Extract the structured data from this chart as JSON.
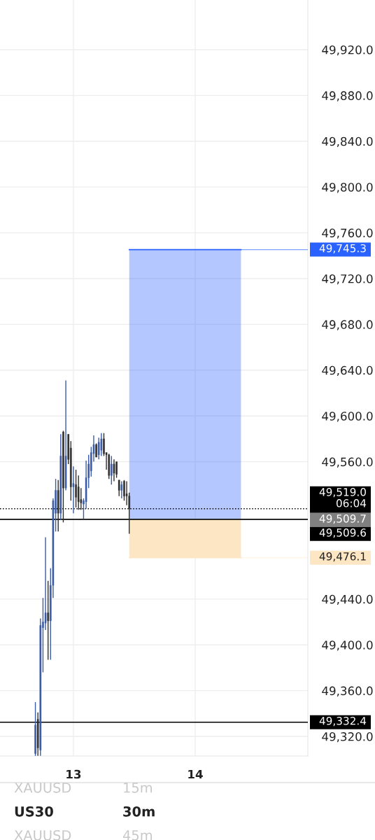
{
  "chart_data": {
    "type": "candlestick",
    "x": [
      12.6875,
      12.7083,
      12.7292,
      12.75,
      12.7708,
      12.7917,
      12.8125,
      12.8333,
      12.8542,
      12.875,
      12.8958,
      12.9167,
      12.9375,
      12.9583,
      12.9792,
      13,
      13.0208,
      13.0417,
      13.0625,
      13.0833,
      13.1042,
      13.125,
      13.1458,
      13.1667,
      13.1875,
      13.2083,
      13.2292,
      13.25,
      13.2708,
      13.2917,
      13.3125,
      13.3333,
      13.3542,
      13.375,
      13.3958,
      13.4167,
      13.4375,
      13.4583
    ],
    "ohlc": [
      [
        49305,
        49350,
        49303,
        49330
      ],
      [
        49335,
        49341,
        49303,
        49310
      ],
      [
        49308,
        49423,
        49303,
        49417
      ],
      [
        49415,
        49441,
        49376,
        49420
      ],
      [
        49419,
        49494,
        49413,
        49428
      ],
      [
        49428,
        49456,
        49387,
        49421
      ],
      [
        49421,
        49467,
        49387,
        49452
      ],
      [
        49452,
        49528,
        49441,
        49526
      ],
      [
        49515,
        49545,
        49499,
        49535
      ],
      [
        49535,
        49544,
        49499,
        49515
      ],
      [
        49515,
        49584,
        49509,
        49565
      ],
      [
        49586,
        49587,
        49507,
        49537
      ],
      [
        49537,
        49631,
        49535,
        49565
      ],
      [
        49584,
        49584,
        49558,
        49562
      ],
      [
        49572,
        49578,
        49526,
        49538
      ],
      [
        49538,
        49556,
        49515,
        49541
      ],
      [
        49540,
        49553,
        49520,
        49529
      ],
      [
        49538,
        49548,
        49518,
        49525
      ],
      [
        49527,
        49537,
        49518,
        49524
      ],
      [
        49523,
        49528,
        49510,
        49526
      ],
      [
        49525,
        49561,
        49519,
        49546
      ],
      [
        49546,
        49566,
        49537,
        49558
      ],
      [
        49552,
        49573,
        49547,
        49568
      ],
      [
        49567,
        49583,
        49560,
        49575
      ],
      [
        49575,
        49576,
        49564,
        49564
      ],
      [
        49566,
        49581,
        49562,
        49577
      ],
      [
        49570,
        49585,
        49565,
        49580
      ],
      [
        49580,
        49585,
        49565,
        49567
      ],
      [
        49568,
        49568,
        49553,
        49566
      ],
      [
        49566,
        49567,
        49545,
        49548
      ],
      [
        49548,
        49565,
        49540,
        49558
      ],
      [
        49558,
        49562,
        49543,
        49550
      ],
      [
        49560,
        49560,
        49546,
        49549
      ],
      [
        49544,
        49544,
        49530,
        49535
      ],
      [
        49535,
        49543,
        49528,
        49540
      ],
      [
        49543,
        49544,
        49526,
        49530
      ],
      [
        49532,
        49543,
        49522,
        49530
      ],
      [
        49530,
        49533,
        49497,
        49519
      ]
    ],
    "colors": [
      "#3b5ba5",
      "#2e2e2e",
      "#3b5ba5",
      "#3b5ba5",
      "#3b5ba5",
      "#2e2e2e",
      "#3b5ba5",
      "#3b5ba5",
      "#3b5ba5",
      "#2e2e2e",
      "#3b5ba5",
      "#2e2e2e",
      "#3b5ba5",
      "#2e2e2e",
      "#2e2e2e",
      "#3b5ba5",
      "#2e2e2e",
      "#2e2e2e",
      "#2e2e2e",
      "#3b5ba5",
      "#3b5ba5",
      "#3b5ba5",
      "#3b5ba5",
      "#3b5ba5",
      "#2e2e2e",
      "#3b5ba5",
      "#3b5ba5",
      "#2e2e2e",
      "#2e2e2e",
      "#2e2e2e",
      "#3b5ba5",
      "#2e2e2e",
      "#2e2e2e",
      "#2e2e2e",
      "#3b5ba5",
      "#2e2e2e",
      "#2e2e2e",
      "#2e2e2e"
    ],
    "xlim": [
      12.397,
      14.925
    ],
    "xticks": [
      13,
      14
    ],
    "ylim": [
      49302.9,
      49963.4
    ],
    "yticks": [
      {
        "value": 49320,
        "label": "49,320.0"
      },
      {
        "value": 49360,
        "label": "49,360.0"
      },
      {
        "value": 49400,
        "label": "49,400.0"
      },
      {
        "value": 49440,
        "label": "49,440.0"
      },
      {
        "value": 49560,
        "label": "49,560.0"
      },
      {
        "value": 49600,
        "label": "49,600.0"
      },
      {
        "value": 49640,
        "label": "49,640.0"
      },
      {
        "value": 49680,
        "label": "49,680.0"
      },
      {
        "value": 49720,
        "label": "49,720.0"
      },
      {
        "value": 49760,
        "label": "49,760.0"
      },
      {
        "value": 49800,
        "label": "49,800.0"
      },
      {
        "value": 49840,
        "label": "49,840.0"
      },
      {
        "value": 49880,
        "label": "49,880.0"
      },
      {
        "value": 49920,
        "label": "49,920.0"
      }
    ],
    "grid": true,
    "bands": [
      {
        "axis": "y",
        "from": 49509.7,
        "to": 49745.3,
        "color": "#2962ff"
      },
      {
        "axis": "y",
        "from": 49476.1,
        "to": 49509.7,
        "color": "#fde6c4"
      }
    ],
    "ref_lines": [
      {
        "axis": "y",
        "value": 49745.3,
        "label": "49,745.3",
        "color": "#2962ff",
        "line_style": "solid"
      },
      {
        "axis": "y",
        "value": 49476.1,
        "label": "49,476.1",
        "color": "#fde6c4",
        "line_style": "solid"
      },
      {
        "axis": "y",
        "value": 49519.0,
        "label": "49,519.0\n06:04",
        "color": "#000000",
        "line_style": "dotted"
      },
      {
        "axis": "y",
        "value": 49509.7,
        "label": "49,509.7",
        "color": "#808080",
        "line_style": "solid"
      },
      {
        "axis": "y",
        "value": 49509.6,
        "label": "49,509.6",
        "color": "#000000",
        "line_style": "solid"
      },
      {
        "axis": "y",
        "value": 49332.4,
        "label": "49,332.4",
        "color": "#000000",
        "line_style": "solid"
      }
    ],
    "annotations": [
      "XAUUSD",
      "15m",
      "US30",
      "30m",
      "XAUUSD",
      "45m"
    ]
  }
}
